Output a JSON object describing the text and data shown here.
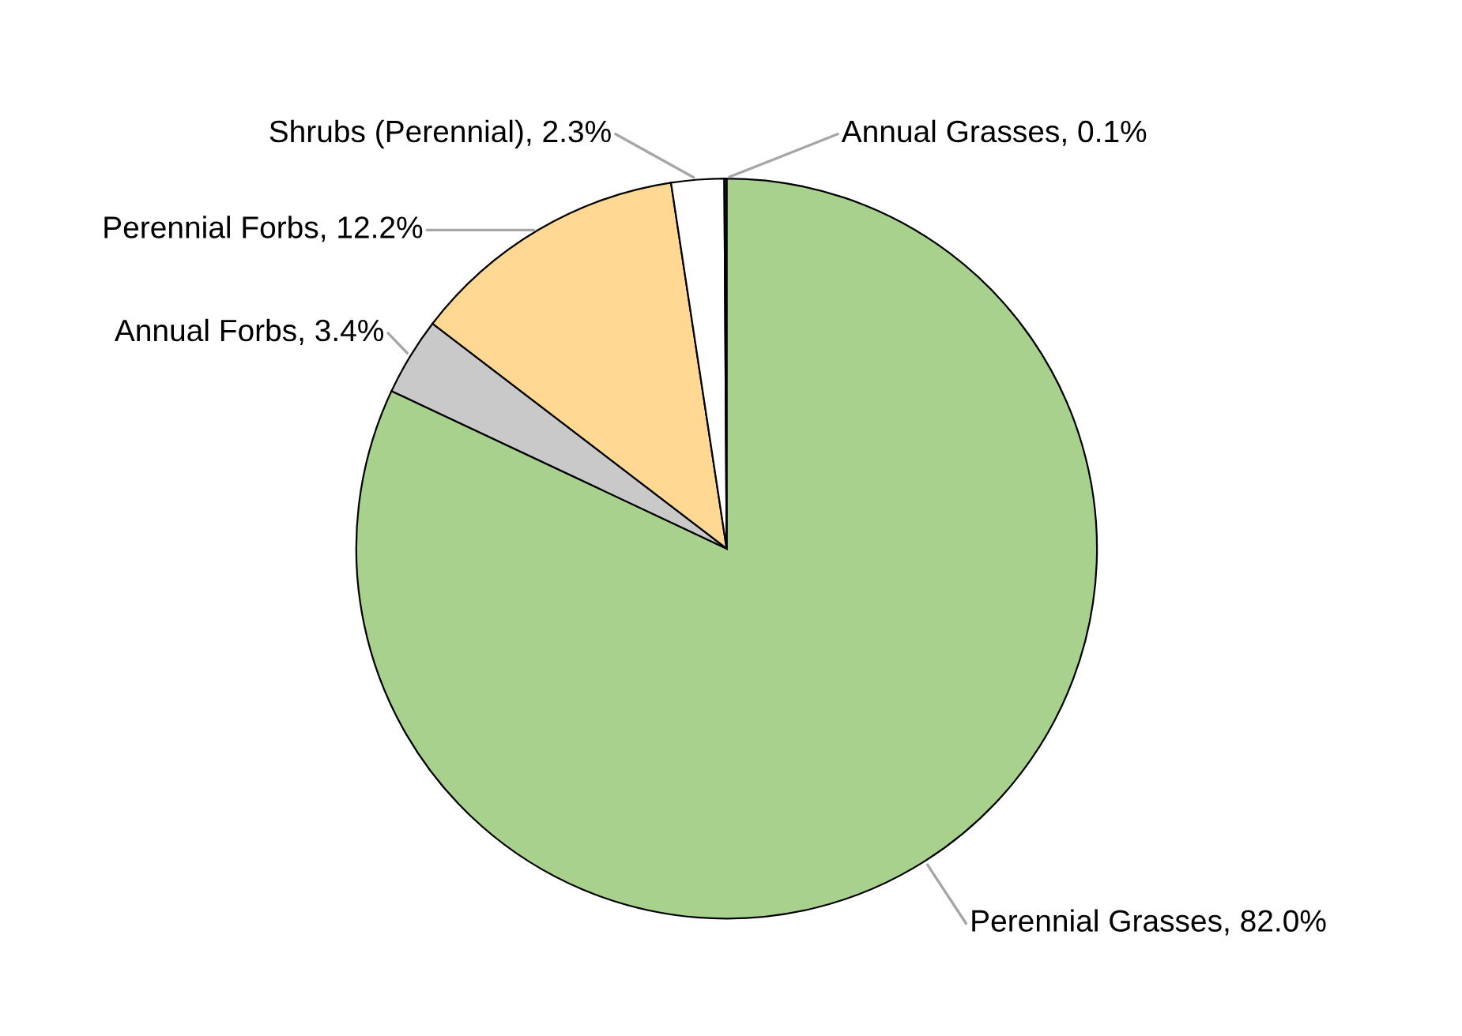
{
  "chart_data": {
    "type": "pie",
    "categories": [
      "Perennial Grasses",
      "Annual Forbs",
      "Perennial Forbs",
      "Shrubs (Perennial)",
      "Annual Grasses"
    ],
    "values": [
      82.0,
      3.4,
      12.2,
      2.3,
      0.1
    ],
    "value_labels": [
      "82.0%",
      "3.4%",
      "12.2%",
      "2.3%",
      "0.1%"
    ],
    "colors": [
      "#a9d18e",
      "#c9c9c9",
      "#ffd993",
      "#ffffff",
      "#1f3864"
    ],
    "legend": false
  }
}
